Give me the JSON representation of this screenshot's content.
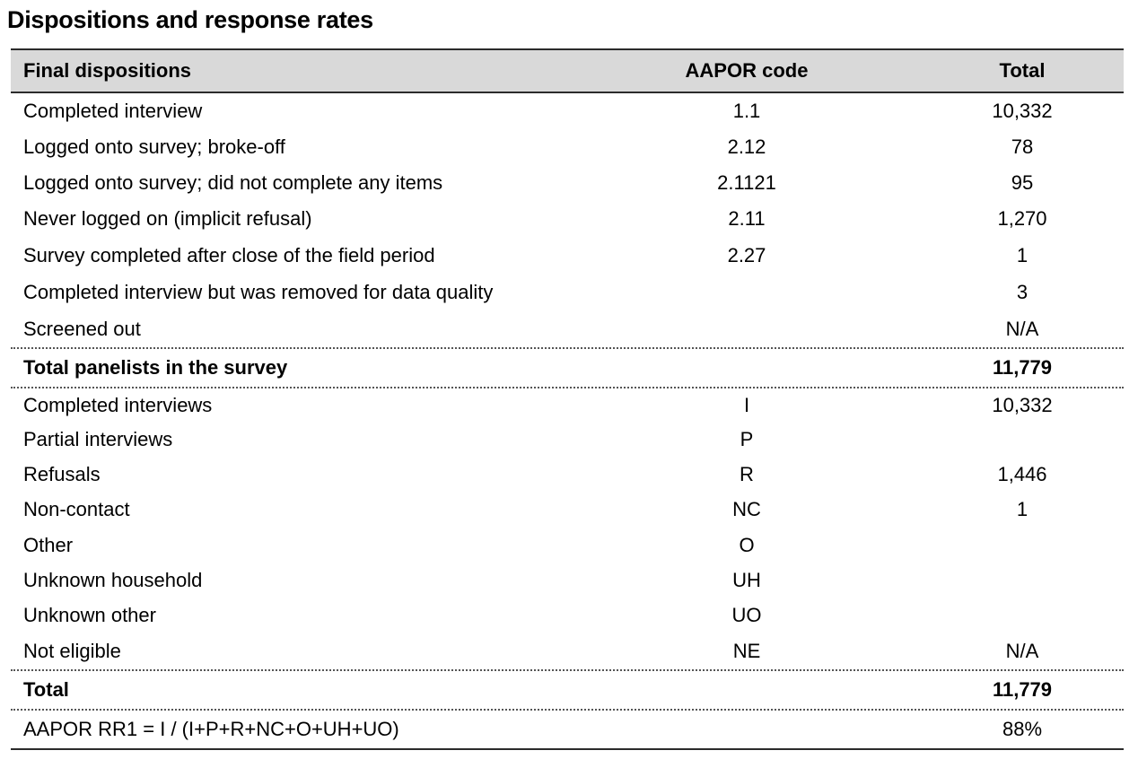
{
  "title": "Dispositions and response rates",
  "table": {
    "headers": {
      "label": "Final dispositions",
      "code": "AAPOR code",
      "total": "Total"
    },
    "dispositions": [
      {
        "label": "Completed interview",
        "code": "1.1",
        "total": "10,332"
      },
      {
        "label": "Logged onto survey; broke-off",
        "code": "2.12",
        "total": "78"
      },
      {
        "label": "Logged onto survey; did not complete any items",
        "code": "2.1121",
        "total": "95"
      },
      {
        "label": "Never logged on (implicit refusal)",
        "code": "2.11",
        "total": "1,270"
      },
      {
        "label": "Survey completed after close of the field period",
        "code": "2.27",
        "total": "1"
      },
      {
        "label": "Completed interview but was removed for data quality",
        "code": "",
        "total": "3"
      },
      {
        "label": "Screened out",
        "code": "",
        "total": "N/A"
      }
    ],
    "panelists_total": {
      "label": "Total panelists in the survey",
      "code": "",
      "total": "11,779"
    },
    "categories": [
      {
        "label": "Completed interviews",
        "code": "I",
        "total": "10,332"
      },
      {
        "label": "Partial interviews",
        "code": "P",
        "total": ""
      },
      {
        "label": "Refusals",
        "code": "R",
        "total": "1,446"
      },
      {
        "label": "Non-contact",
        "code": "NC",
        "total": "1"
      },
      {
        "label": "Other",
        "code": "O",
        "total": ""
      },
      {
        "label": "Unknown household",
        "code": "UH",
        "total": ""
      },
      {
        "label": "Unknown other",
        "code": "UO",
        "total": ""
      },
      {
        "label": "Not eligible",
        "code": "NE",
        "total": "N/A"
      }
    ],
    "grand_total": {
      "label": "Total",
      "code": "",
      "total": "11,779"
    },
    "response_rate": {
      "label": "AAPOR RR1 = I / (I+P+R+NC+O+UH+UO)",
      "code": "",
      "total": "88%"
    }
  }
}
